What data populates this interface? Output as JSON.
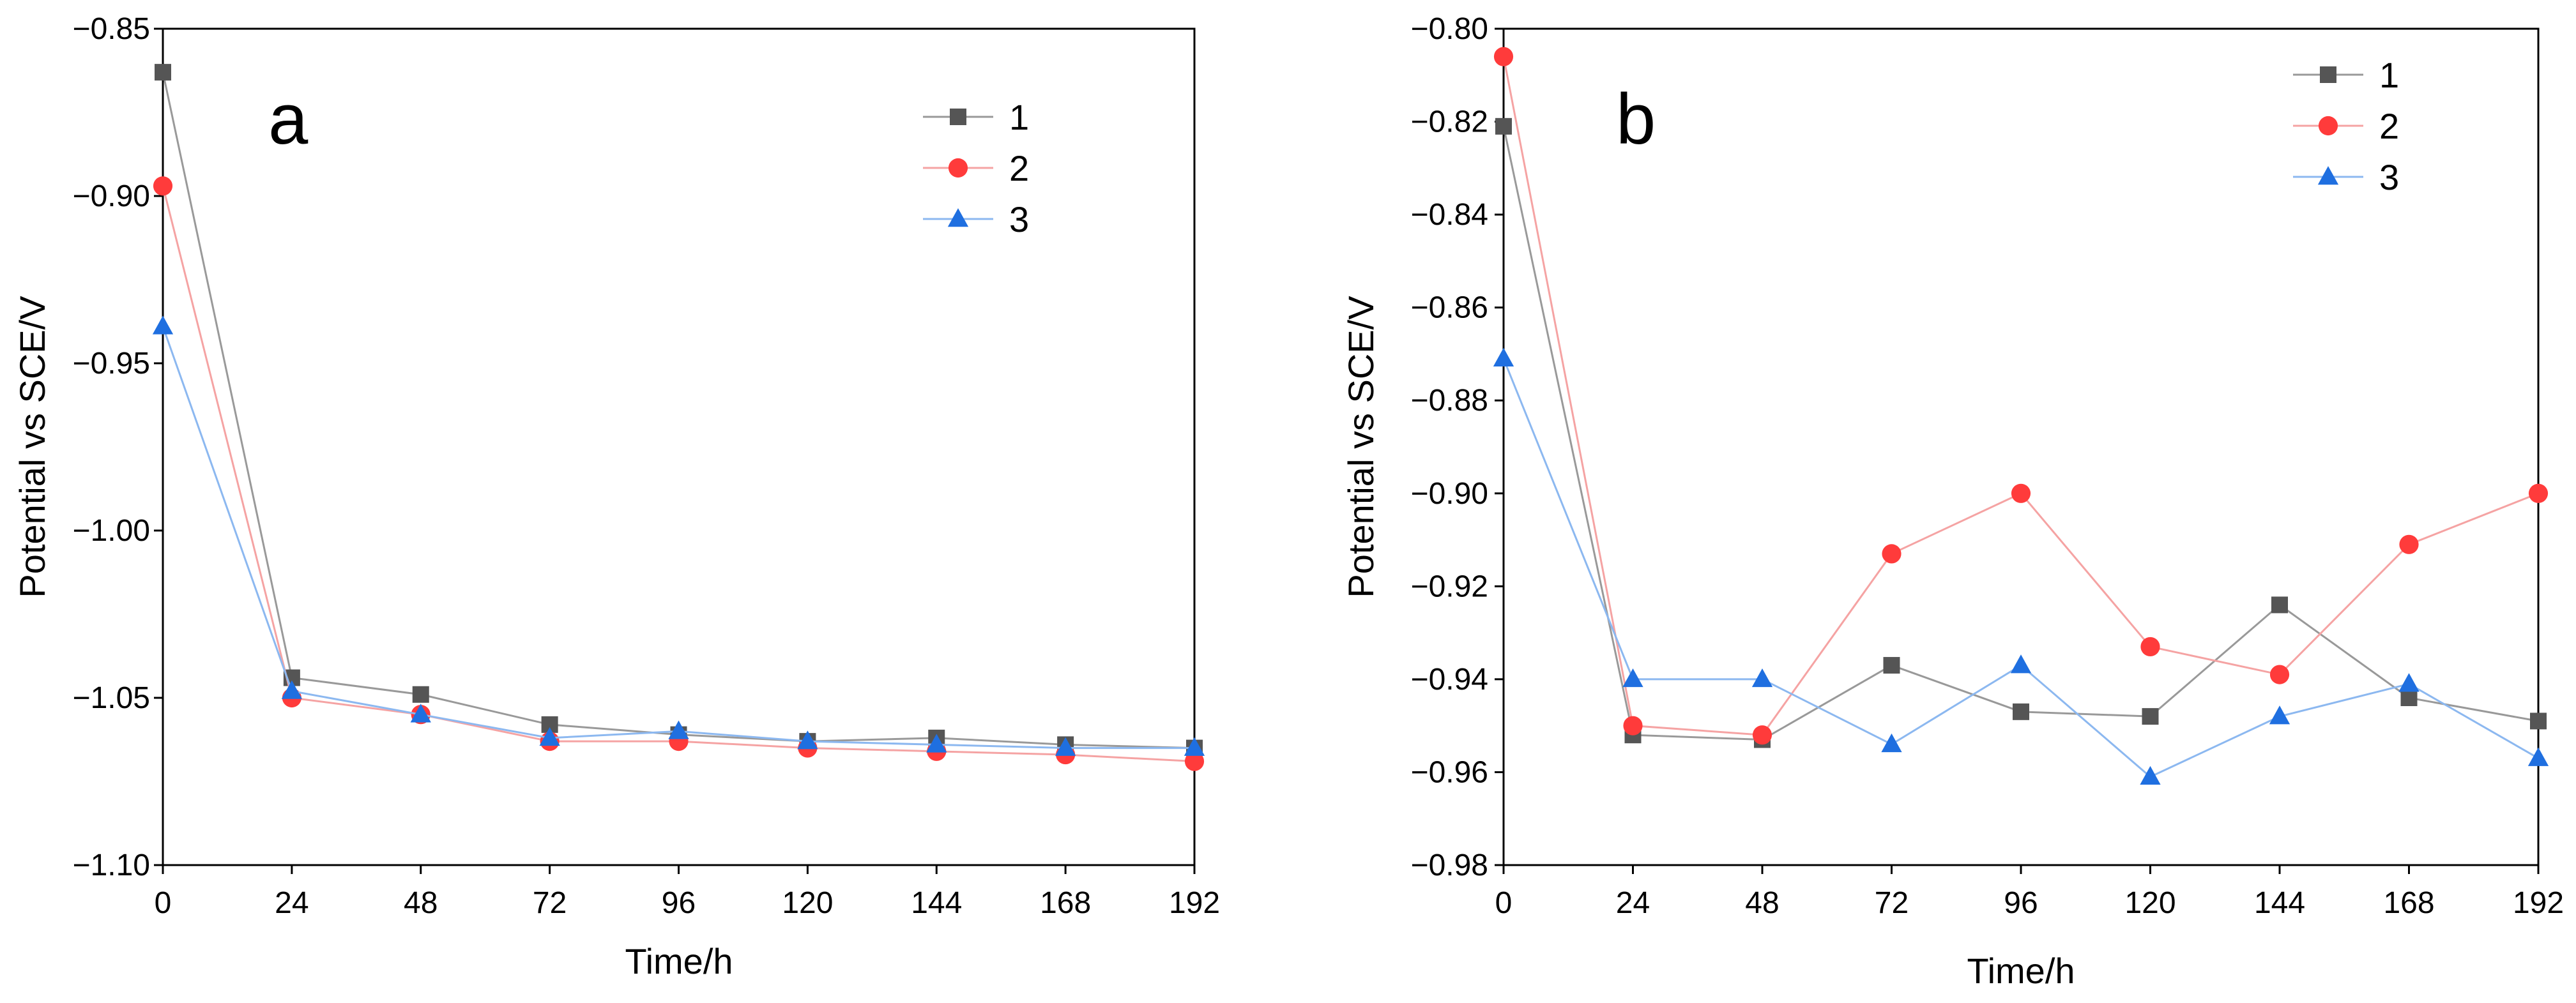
{
  "chart_data": [
    {
      "type": "line",
      "panel_label": "a",
      "xlabel": "Time/h",
      "ylabel": "Potential vs SCE/V",
      "xlim": [
        0,
        192
      ],
      "ylim": [
        -1.1,
        -0.85
      ],
      "x_ticks": [
        0,
        24,
        48,
        72,
        96,
        120,
        144,
        168,
        192
      ],
      "x_tick_labels": [
        "0",
        "24",
        "48",
        "72",
        "96",
        "120",
        "144",
        "168",
        "192"
      ],
      "y_ticks": [
        -0.85,
        -0.9,
        -0.95,
        -1.0,
        -1.05,
        -1.1
      ],
      "y_tick_labels": [
        "−0.85",
        "−0.90",
        "−0.95",
        "−1.00",
        "−1.05",
        "−1.10"
      ],
      "legend_position": "top-right",
      "x": [
        0,
        24,
        48,
        72,
        96,
        120,
        144,
        168,
        192
      ],
      "series": [
        {
          "name": "1",
          "marker": "square",
          "color": "#555555",
          "line_color": "#999999",
          "values": [
            -0.863,
            -1.044,
            -1.049,
            -1.058,
            -1.061,
            -1.063,
            -1.062,
            -1.064,
            -1.065
          ]
        },
        {
          "name": "2",
          "marker": "circle",
          "color": "#ff3b3b",
          "line_color": "#f5a3a3",
          "values": [
            -0.897,
            -1.05,
            -1.055,
            -1.063,
            -1.063,
            -1.065,
            -1.066,
            -1.067,
            -1.069
          ]
        },
        {
          "name": "3",
          "marker": "triangle",
          "color": "#1f6fe0",
          "line_color": "#8cb8f0",
          "values": [
            -0.939,
            -1.048,
            -1.055,
            -1.062,
            -1.06,
            -1.063,
            -1.064,
            -1.065,
            -1.065
          ]
        }
      ]
    },
    {
      "type": "line",
      "panel_label": "b",
      "xlabel": "Time/h",
      "ylabel": "Potential vs SCE/V",
      "xlim": [
        0,
        192
      ],
      "ylim": [
        -0.98,
        -0.8
      ],
      "x_ticks": [
        0,
        24,
        48,
        72,
        96,
        120,
        144,
        168,
        192
      ],
      "x_tick_labels": [
        "0",
        "24",
        "48",
        "72",
        "96",
        "120",
        "144",
        "168",
        "192"
      ],
      "y_ticks": [
        -0.8,
        -0.82,
        -0.84,
        -0.86,
        -0.88,
        -0.9,
        -0.92,
        -0.94,
        -0.96,
        -0.98
      ],
      "y_tick_labels": [
        "−0.80",
        "−0.82",
        "−0.84",
        "−0.86",
        "−0.88",
        "−0.90",
        "−0.92",
        "−0.94",
        "−0.96",
        "−0.98"
      ],
      "legend_position": "top-right",
      "x": [
        0,
        24,
        48,
        72,
        96,
        120,
        144,
        168,
        192
      ],
      "series": [
        {
          "name": "1",
          "marker": "square",
          "color": "#555555",
          "line_color": "#999999",
          "values": [
            -0.821,
            -0.952,
            -0.953,
            -0.937,
            -0.947,
            -0.948,
            -0.924,
            -0.944,
            -0.949
          ]
        },
        {
          "name": "2",
          "marker": "circle",
          "color": "#ff3b3b",
          "line_color": "#f5a3a3",
          "values": [
            -0.806,
            -0.95,
            -0.952,
            -0.913,
            -0.9,
            -0.933,
            -0.939,
            -0.911,
            -0.9
          ]
        },
        {
          "name": "3",
          "marker": "triangle",
          "color": "#1f6fe0",
          "line_color": "#8cb8f0",
          "values": [
            -0.871,
            -0.94,
            -0.94,
            -0.954,
            -0.937,
            -0.961,
            -0.948,
            -0.941,
            -0.957
          ]
        }
      ]
    }
  ]
}
